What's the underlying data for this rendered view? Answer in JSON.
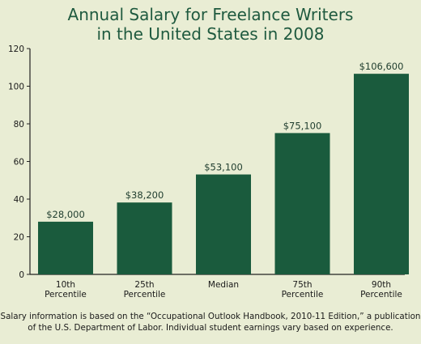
{
  "chart_data": {
    "type": "bar",
    "title_lines": [
      "Annual Salary for Freelance Writers",
      "in the United States in 2008"
    ],
    "categories": [
      [
        "10th",
        "Percentile"
      ],
      [
        "25th",
        "Percentile"
      ],
      [
        "Median"
      ],
      [
        "75th",
        "Percentile"
      ],
      [
        "90th",
        "Percentile"
      ]
    ],
    "values": [
      28.0,
      38.2,
      53.1,
      75.1,
      106.6
    ],
    "data_labels": [
      "$28,000",
      "$38,200",
      "$53,100",
      "$75,100",
      "$106,600"
    ],
    "ylim": [
      0,
      120
    ],
    "yticks": [
      0,
      20,
      40,
      60,
      80,
      100,
      120
    ],
    "xlabel": "",
    "ylabel": "",
    "grid": false,
    "bar_color": "#1a5b3d",
    "axis_color": "#222222"
  },
  "footnote_lines": [
    "Salary information is based on the “Occupational Outlook Handbook, 2010-11 Edition,” a publication",
    "of the U.S. Department of Labor. Individual student earnings vary based on experience."
  ]
}
